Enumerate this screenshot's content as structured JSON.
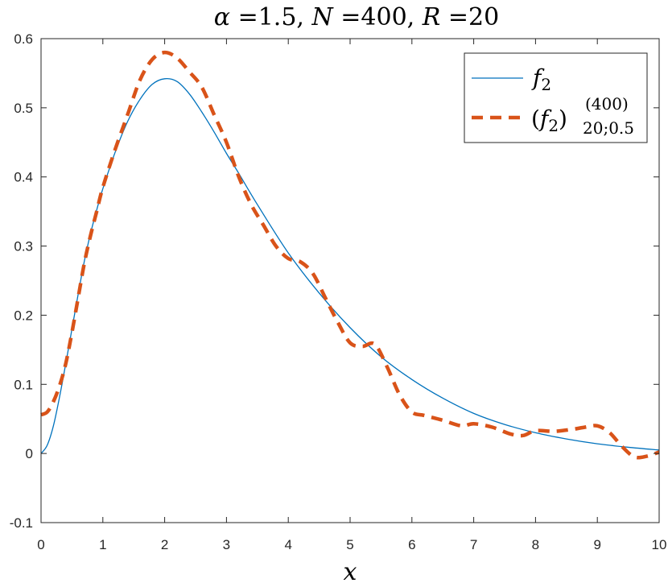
{
  "chart_data": {
    "type": "line",
    "title": "α =1.5, N =400, R =20",
    "title_parts": {
      "alpha": "α",
      "alpha_val": " =1.5, ",
      "n": "N",
      "n_val": " =400, ",
      "r": "R",
      "r_val": " =20"
    },
    "xlabel": "x",
    "ylabel": "",
    "xlim": [
      0,
      10
    ],
    "ylim": [
      -0.1,
      0.6
    ],
    "x_ticks": [
      0,
      1,
      2,
      3,
      4,
      5,
      6,
      7,
      8,
      9,
      10
    ],
    "x_tick_labels": [
      "0",
      "1",
      "2",
      "3",
      "4",
      "5",
      "6",
      "7",
      "8",
      "9",
      "10"
    ],
    "y_ticks": [
      -0.1,
      0,
      0.1,
      0.2,
      0.3,
      0.4,
      0.5,
      0.6
    ],
    "y_tick_labels": [
      "-0.1",
      "0",
      "0.1",
      "0.2",
      "0.3",
      "0.4",
      "0.5",
      "0.6"
    ],
    "grid": false,
    "legend_position": "top-right",
    "legend": {
      "entry1": {
        "f": "f",
        "sub": "2"
      },
      "entry2": {
        "open": "(",
        "f": "f",
        "sub": "2",
        "close": ")",
        "sup": "(400)",
        "sub2": "20;0.5"
      }
    },
    "series": [
      {
        "name": "f2",
        "color": "#0072BD",
        "style": "solid",
        "x": [
          0,
          0.1,
          0.2,
          0.3,
          0.4,
          0.5,
          0.6,
          0.7,
          0.8,
          0.9,
          1.0,
          1.2,
          1.4,
          1.6,
          1.8,
          2.0,
          2.2,
          2.4,
          2.6,
          2.8,
          3.0,
          3.2,
          3.5,
          4.0,
          4.5,
          5.0,
          5.5,
          6.0,
          6.5,
          7.0,
          7.5,
          8.0,
          8.5,
          9.0,
          9.5,
          10.0
        ],
        "y": [
          0,
          0.012,
          0.04,
          0.082,
          0.13,
          0.18,
          0.23,
          0.278,
          0.318,
          0.352,
          0.383,
          0.436,
          0.48,
          0.512,
          0.534,
          0.542,
          0.538,
          0.52,
          0.494,
          0.465,
          0.434,
          0.405,
          0.36,
          0.29,
          0.232,
          0.182,
          0.14,
          0.107,
          0.08,
          0.058,
          0.042,
          0.03,
          0.021,
          0.014,
          0.009,
          0.005
        ]
      },
      {
        "name": "(f2)^(400)_20;0.5",
        "color": "#D95319",
        "style": "dashed",
        "x": [
          0,
          0.1,
          0.2,
          0.3,
          0.4,
          0.5,
          0.6,
          0.7,
          0.8,
          0.9,
          1.0,
          1.2,
          1.4,
          1.6,
          1.8,
          2.0,
          2.2,
          2.4,
          2.6,
          2.8,
          3.0,
          3.2,
          3.4,
          3.6,
          3.8,
          4.0,
          4.2,
          4.4,
          4.6,
          4.8,
          5.0,
          5.2,
          5.4,
          5.6,
          5.8,
          6.0,
          6.2,
          6.5,
          6.8,
          7.0,
          7.3,
          7.6,
          7.8,
          8.0,
          8.3,
          8.6,
          8.8,
          9.0,
          9.2,
          9.4,
          9.6,
          9.8,
          10.0
        ],
        "y": [
          0.056,
          0.06,
          0.075,
          0.098,
          0.13,
          0.175,
          0.225,
          0.275,
          0.315,
          0.35,
          0.385,
          0.44,
          0.49,
          0.54,
          0.57,
          0.58,
          0.572,
          0.552,
          0.53,
          0.49,
          0.45,
          0.4,
          0.36,
          0.33,
          0.3,
          0.282,
          0.277,
          0.26,
          0.225,
          0.19,
          0.16,
          0.155,
          0.158,
          0.125,
          0.085,
          0.06,
          0.055,
          0.048,
          0.04,
          0.043,
          0.038,
          0.028,
          0.026,
          0.033,
          0.032,
          0.035,
          0.038,
          0.04,
          0.03,
          0.01,
          -0.005,
          -0.004,
          0.002
        ]
      }
    ]
  }
}
